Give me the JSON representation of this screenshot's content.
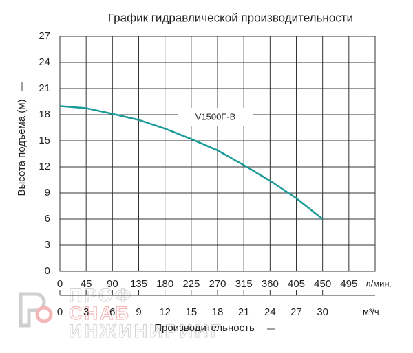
{
  "chart_data": {
    "type": "line",
    "title": "График гидравлической производительности",
    "y_label": "Высота подъема (м)",
    "x_label": "Производительность",
    "x_unit": "л/мин.",
    "x2_unit": "м³/ч",
    "x": [
      0,
      45,
      90,
      135,
      180,
      225,
      270,
      315,
      360,
      405,
      450
    ],
    "series": [
      {
        "name": "V1500F-B",
        "color": "#1a9a98",
        "values": [
          19,
          18.75,
          18.1,
          17.4,
          16.4,
          15.2,
          13.9,
          12.2,
          10.4,
          8.4,
          6
        ]
      }
    ],
    "xlim": [
      0,
      540
    ],
    "xticks": [
      0,
      45,
      90,
      135,
      180,
      225,
      270,
      315,
      360,
      405,
      450,
      495
    ],
    "x2lim": [
      0,
      36
    ],
    "x2ticks": [
      0,
      3,
      6,
      9,
      12,
      15,
      18,
      21,
      24,
      27,
      30
    ],
    "ylim": [
      0,
      27
    ],
    "yticks": [
      0,
      3,
      6,
      9,
      12,
      15,
      18,
      21,
      24,
      27
    ],
    "grid": true,
    "watermark": [
      "ПРОФ",
      "СНАБ",
      "ИНЖИНИРИНГ"
    ]
  }
}
